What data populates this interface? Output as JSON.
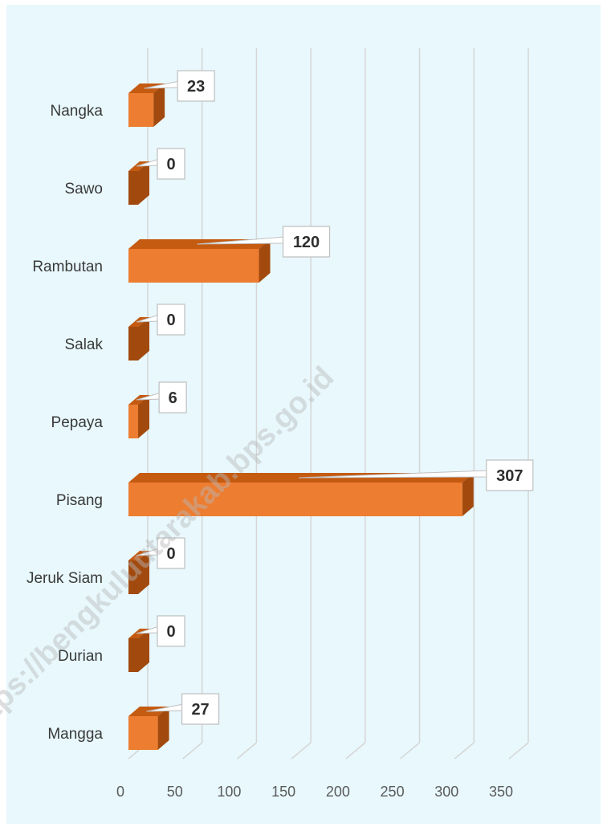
{
  "chart_data": {
    "type": "bar",
    "orientation": "horizontal",
    "style": "3d",
    "categories": [
      "Nangka",
      "Sawo",
      "Rambutan",
      "Salak",
      "Pepaya",
      "Pisang",
      "Jeruk Siam",
      "Durian",
      "Mangga"
    ],
    "values": [
      23,
      0,
      120,
      0,
      6,
      307,
      0,
      0,
      27
    ],
    "xlim": [
      0,
      350
    ],
    "xticks": [
      "0",
      "50",
      "100",
      "150",
      "200",
      "250",
      "300",
      "350"
    ],
    "grid": true,
    "legend": "none",
    "title": "",
    "xlabel": "",
    "ylabel": ""
  },
  "colors": {
    "background": "#e8f8fc",
    "bar_front": "#ed7d31",
    "bar_top": "#c55a11",
    "bar_side": "#a24a0e",
    "grid": "#d6d6d6",
    "callout_border": "#bfbfbf"
  },
  "watermark": "https://bengkuluutarakab.bps.go.id"
}
